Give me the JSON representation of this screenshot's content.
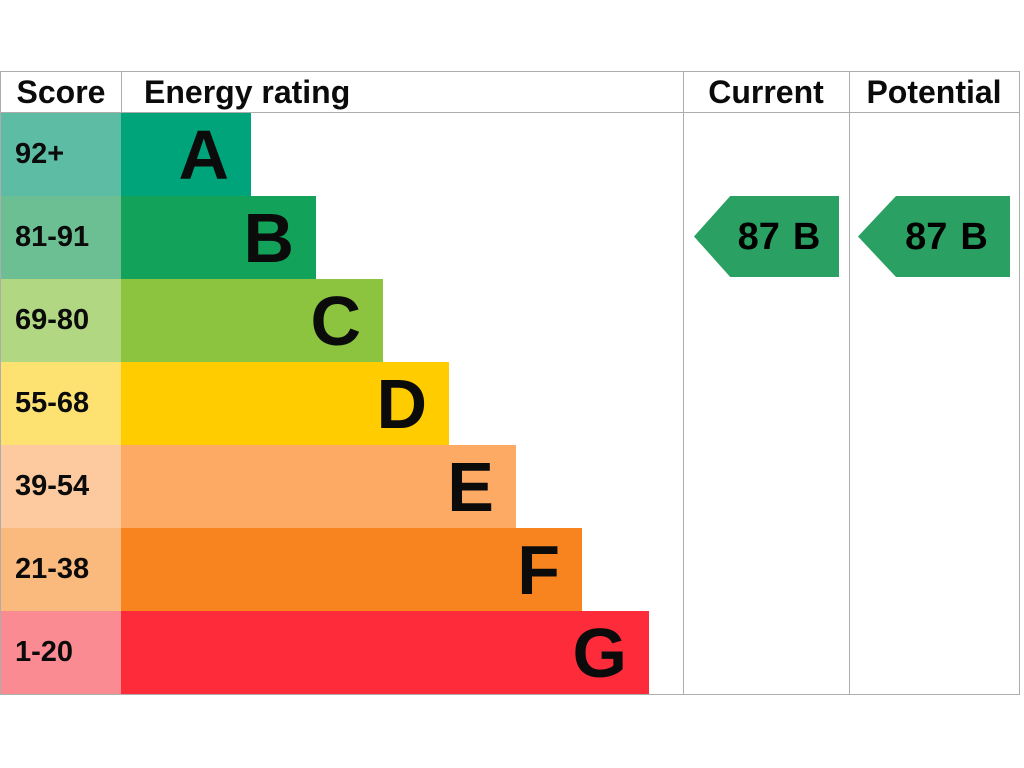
{
  "header": {
    "score": "Score",
    "rating": "Energy rating",
    "current": "Current",
    "potential": "Potential"
  },
  "bands": [
    {
      "score": "92+",
      "letter": "A",
      "bar_color": "#00a47a",
      "score_color": "#5cbda4"
    },
    {
      "score": "81-91",
      "letter": "B",
      "bar_color": "#12a25a",
      "score_color": "#6cbf93"
    },
    {
      "score": "69-80",
      "letter": "C",
      "bar_color": "#8cc43f",
      "score_color": "#b2d783"
    },
    {
      "score": "55-68",
      "letter": "D",
      "bar_color": "#ffcc00",
      "score_color": "#fde272"
    },
    {
      "score": "39-54",
      "letter": "E",
      "bar_color": "#fdaa64",
      "score_color": "#fcca9e"
    },
    {
      "score": "21-38",
      "letter": "F",
      "bar_color": "#f8841f",
      "score_color": "#fab97d"
    },
    {
      "score": "1-20",
      "letter": "G",
      "bar_color": "#fe2c3b",
      "score_color": "#fa8b92"
    }
  ],
  "current": {
    "value": "87",
    "letter": "B",
    "color": "#2aa062"
  },
  "potential": {
    "value": "87",
    "letter": "B",
    "color": "#2aa062"
  },
  "colors": {
    "border": "#adadad",
    "text": "#0b0b0b"
  },
  "chart_data": {
    "type": "bar",
    "title": "Energy rating",
    "categories": [
      "A",
      "B",
      "C",
      "D",
      "E",
      "F",
      "G"
    ],
    "score_ranges": [
      "92+",
      "81-91",
      "69-80",
      "55-68",
      "39-54",
      "21-38",
      "1-20"
    ],
    "band_colors": [
      "#00a47a",
      "#12a25a",
      "#8cc43f",
      "#ffcc00",
      "#fdaa64",
      "#f8841f",
      "#fe2c3b"
    ],
    "values": [
      130,
      195,
      262,
      328,
      395,
      461,
      528
    ],
    "columns": [
      "Score",
      "Energy rating",
      "Current",
      "Potential"
    ],
    "current": {
      "score": 87,
      "band": "B"
    },
    "potential": {
      "score": 87,
      "band": "B"
    },
    "legend_position": "none",
    "grid": false
  }
}
